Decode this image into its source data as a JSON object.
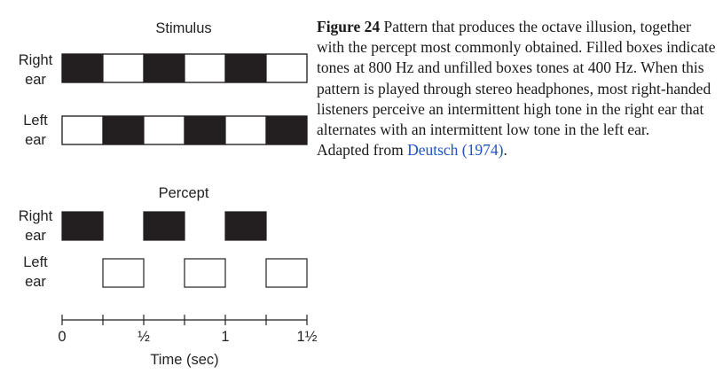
{
  "stimulus": {
    "title": "Stimulus",
    "channels": [
      {
        "label_line1": "Right",
        "label_line2": "ear",
        "pattern": [
          "high",
          "low",
          "high",
          "low",
          "high",
          "low"
        ]
      },
      {
        "label_line1": "Left",
        "label_line2": "ear",
        "pattern": [
          "low",
          "high",
          "low",
          "high",
          "low",
          "high"
        ]
      }
    ]
  },
  "percept": {
    "title": "Percept",
    "channels": [
      {
        "label_line1": "Right",
        "label_line2": "ear",
        "pattern": [
          "high",
          null,
          "high",
          null,
          "high",
          null
        ]
      },
      {
        "label_line1": "Left",
        "label_line2": "ear",
        "pattern": [
          null,
          "low",
          null,
          "low",
          null,
          "low"
        ]
      }
    ]
  },
  "time_axis": {
    "label": "Time (sec)",
    "tick_values": [
      "0",
      "½",
      "1",
      "1½"
    ]
  },
  "colors": {
    "high": "#231f20",
    "low": "#ffffff",
    "link": "#1f52c4"
  },
  "caption": {
    "figure_label": "Figure 24",
    "text": "Pattern that produces the octave illusion, together with the percept most commonly obtained. Filled boxes indicate tones at 800 Hz and unfilled boxes tones at 400 Hz. When this pattern is played through stereo headphones, most right-handed listeners perceive an intermittent high tone in the right ear that alternates with an intermittent low tone in the left ear.",
    "adapted_prefix": "Adapted from ",
    "reference_link": "Deutsch (1974)",
    "adapted_suffix": "."
  }
}
